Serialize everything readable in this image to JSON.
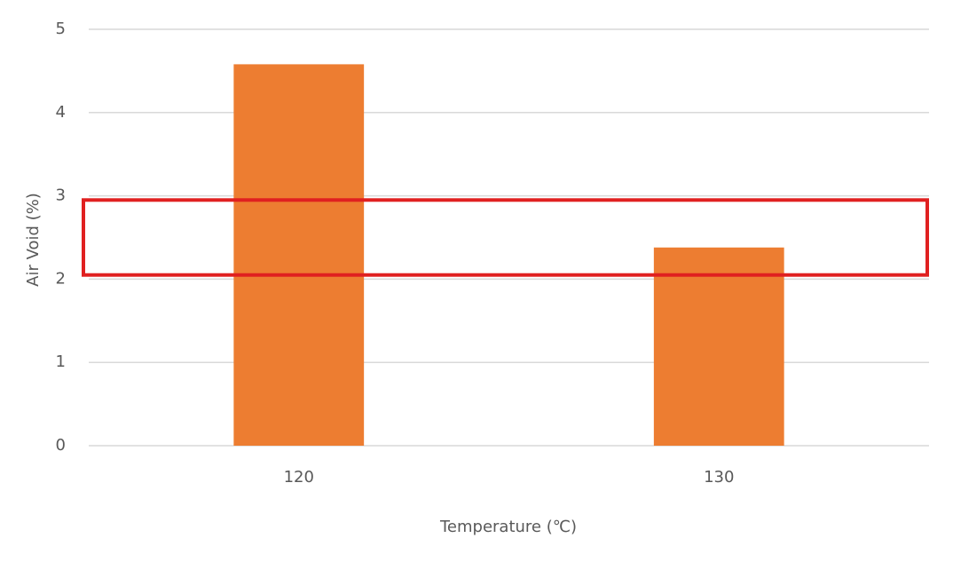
{
  "chart_data": {
    "type": "bar",
    "categories": [
      "120",
      "130"
    ],
    "values": [
      4.58,
      2.38
    ],
    "color": "#ed7d31",
    "x_label": "Temperature (℃)",
    "y_label": "Air Void (%)",
    "ylim": [
      0,
      5
    ],
    "yticks": [
      0,
      1,
      2,
      3,
      4,
      5
    ],
    "grid": true,
    "highlight_band": [
      2.05,
      2.95
    ],
    "highlight_color": "#e02020"
  }
}
